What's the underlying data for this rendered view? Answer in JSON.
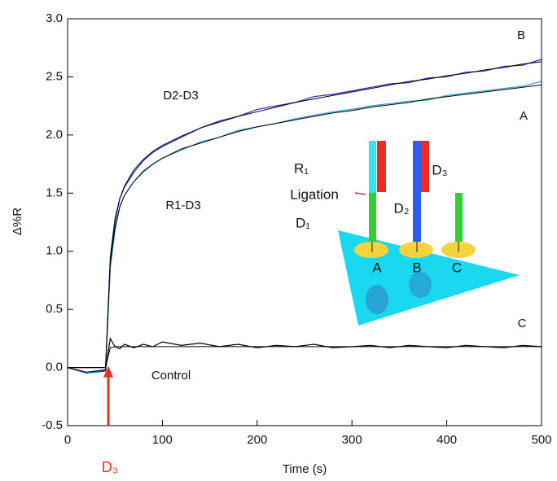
{
  "chart_data": {
    "type": "line",
    "x_label": "Time (s)",
    "y_label": "Δ%R",
    "xlim": [
      0,
      500
    ],
    "xticks": [
      0,
      100,
      200,
      300,
      400,
      500
    ],
    "ylim": [
      -0.5,
      3.0
    ],
    "yticks": [
      -0.5,
      {
        "value": 0,
        "label": "0.0"
      },
      0.5,
      {
        "value": 1,
        "label": "1.0"
      },
      1.5,
      {
        "value": 2,
        "label": "2.0"
      },
      2.5,
      {
        "value": 3,
        "label": "3.0"
      }
    ],
    "x": [
      0,
      20,
      40,
      45,
      50,
      55,
      60,
      70,
      80,
      90,
      100,
      120,
      140,
      160,
      180,
      200,
      220,
      240,
      260,
      280,
      300,
      320,
      340,
      360,
      380,
      400,
      420,
      440,
      460,
      480,
      500
    ],
    "series": [
      {
        "color": "#1f2fbf",
        "values": [
          0.0,
          -0.05,
          -0.03,
          0.9,
          1.25,
          1.45,
          1.55,
          1.68,
          1.78,
          1.85,
          1.9,
          1.98,
          2.06,
          2.12,
          2.16,
          2.22,
          2.25,
          2.28,
          2.33,
          2.35,
          2.38,
          2.41,
          2.44,
          2.45,
          2.49,
          2.5,
          2.54,
          2.55,
          2.59,
          2.6,
          2.65
        ]
      },
      {
        "color": "#2aa0c8",
        "values": [
          0.0,
          -0.05,
          -0.02,
          0.85,
          1.18,
          1.38,
          1.48,
          1.6,
          1.68,
          1.75,
          1.8,
          1.87,
          1.94,
          1.98,
          2.04,
          2.07,
          2.1,
          2.14,
          2.17,
          2.2,
          2.22,
          2.25,
          2.27,
          2.29,
          2.3,
          2.34,
          2.36,
          2.38,
          2.4,
          2.42,
          2.46
        ]
      },
      {
        "color": "#000000",
        "values": [
          0.0,
          -0.04,
          -0.02,
          0.25,
          0.18,
          0.16,
          0.2,
          0.17,
          0.2,
          0.18,
          0.22,
          0.19,
          0.21,
          0.18,
          0.2,
          0.17,
          0.19,
          0.18,
          0.2,
          0.17,
          0.18,
          0.19,
          0.17,
          0.19,
          0.18,
          0.17,
          0.19,
          0.18,
          0.17,
          0.19,
          0.18
        ]
      },
      {
        "color": "#000000",
        "values": [
          0,
          0,
          0,
          0.95,
          1.28,
          1.45,
          1.56,
          1.7,
          1.79,
          1.86,
          1.91,
          1.99,
          2.06,
          2.11,
          2.16,
          2.2,
          2.24,
          2.28,
          2.31,
          2.34,
          2.37,
          2.4,
          2.43,
          2.46,
          2.48,
          2.51,
          2.53,
          2.56,
          2.58,
          2.61,
          2.63
        ]
      },
      {
        "color": "#000000",
        "values": [
          0,
          0,
          0,
          0.9,
          1.2,
          1.38,
          1.48,
          1.6,
          1.69,
          1.75,
          1.8,
          1.88,
          1.93,
          1.98,
          2.03,
          2.07,
          2.1,
          2.13,
          2.16,
          2.19,
          2.21,
          2.24,
          2.26,
          2.28,
          2.31,
          2.33,
          2.35,
          2.37,
          2.39,
          2.41,
          2.43
        ]
      },
      {
        "color": "#000000",
        "values": [
          0,
          0,
          0,
          0.17,
          0.18,
          0.18,
          0.18,
          0.18,
          0.18,
          0.18,
          0.18,
          0.18,
          0.18,
          0.18,
          0.18,
          0.18,
          0.18,
          0.18,
          0.18,
          0.18,
          0.18,
          0.18,
          0.18,
          0.18,
          0.18,
          0.18,
          0.18,
          0.18,
          0.18,
          0.18,
          0.18
        ]
      }
    ],
    "annotations": [
      "B",
      "A",
      "C",
      "D2-D3",
      "R1-D3",
      "Control",
      "D₃"
    ],
    "diagram_labels": [
      "R₁",
      "D₃",
      "Ligation",
      "D₂",
      "D₁",
      "A",
      "B",
      "C"
    ]
  }
}
